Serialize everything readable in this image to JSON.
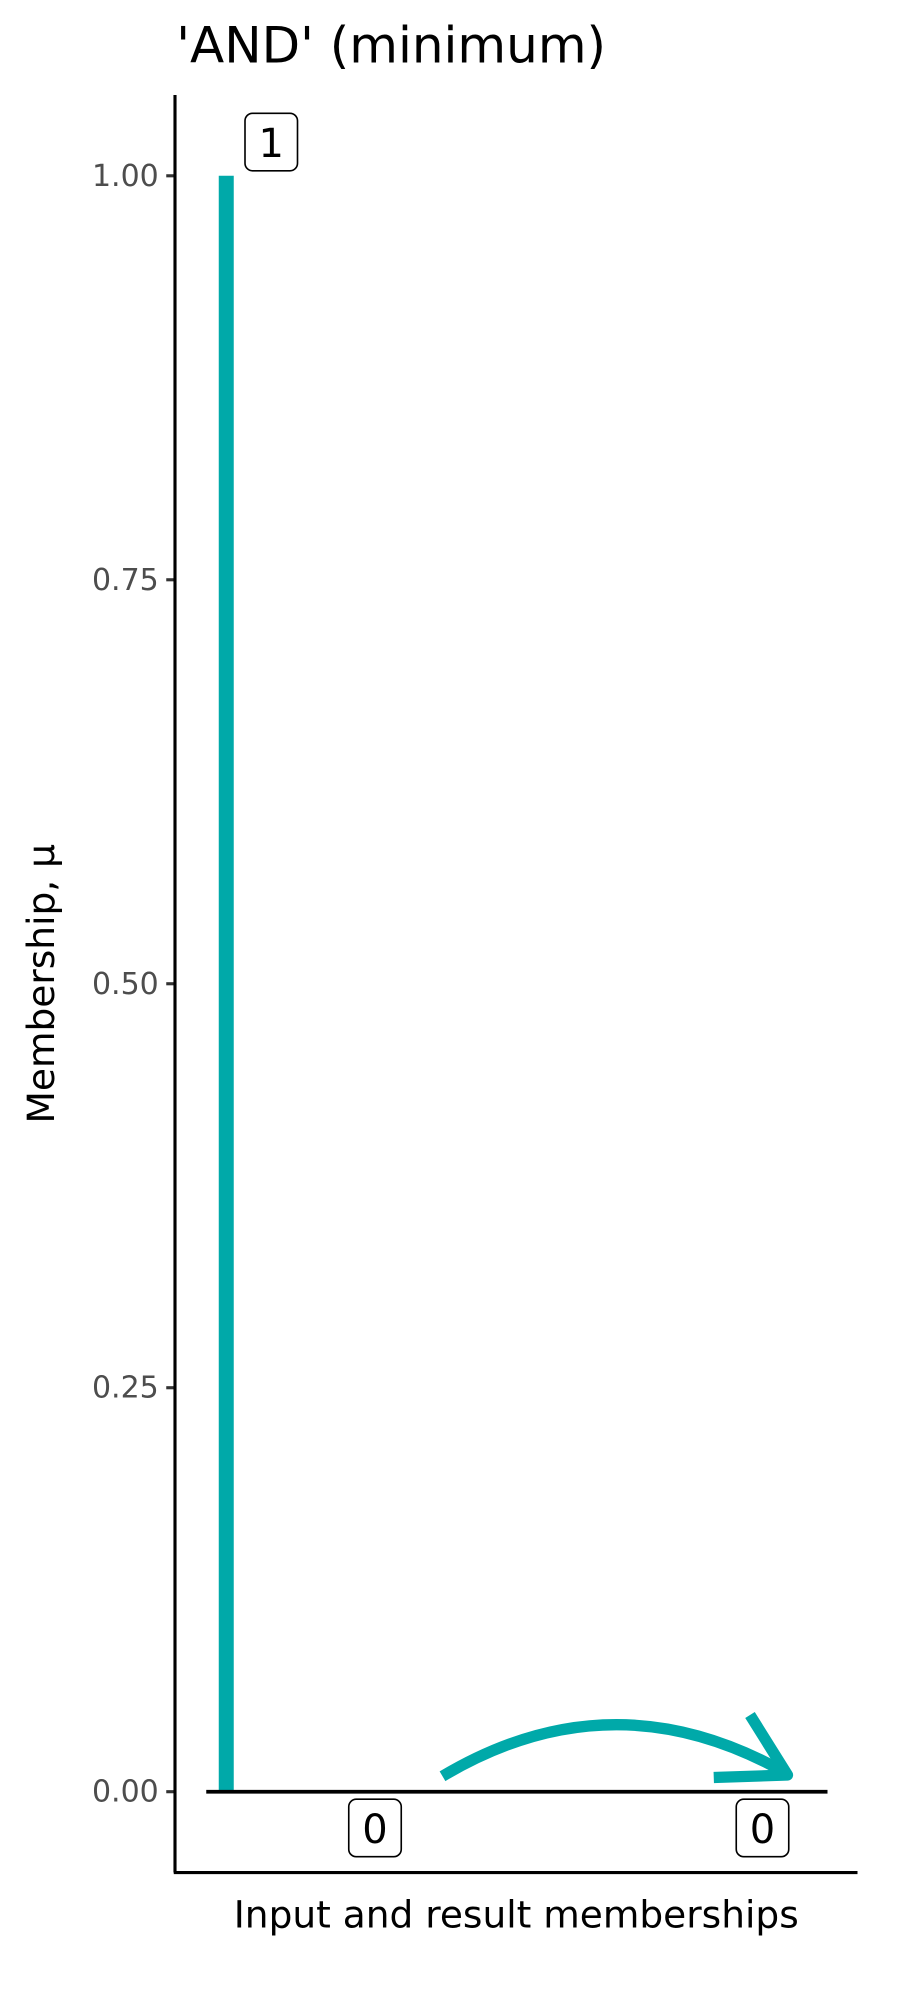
{
  "chart_data": {
    "type": "line",
    "title": "'AND' (minimum)",
    "xlabel": "Input and result memberships",
    "ylabel": "Membership, μ",
    "ylim": [
      -0.05,
      1.05
    ],
    "yticks": [
      0,
      0.25,
      0.5,
      0.75,
      1
    ],
    "ytick_labels": [
      "0.00",
      "0.25",
      "0.50",
      "0.75",
      "1.00"
    ],
    "grid": false,
    "legend": "none",
    "inputs": [
      {
        "value": 1,
        "label": "1",
        "color": "#00A9A9",
        "orientation": "vertical"
      },
      {
        "value": 0,
        "label": "0",
        "color": "#000000",
        "orientation": "horizontal"
      }
    ],
    "result": {
      "value": 0,
      "label": "0"
    },
    "arrow": {
      "color": "#00A9A9",
      "direction": "to-result"
    }
  }
}
